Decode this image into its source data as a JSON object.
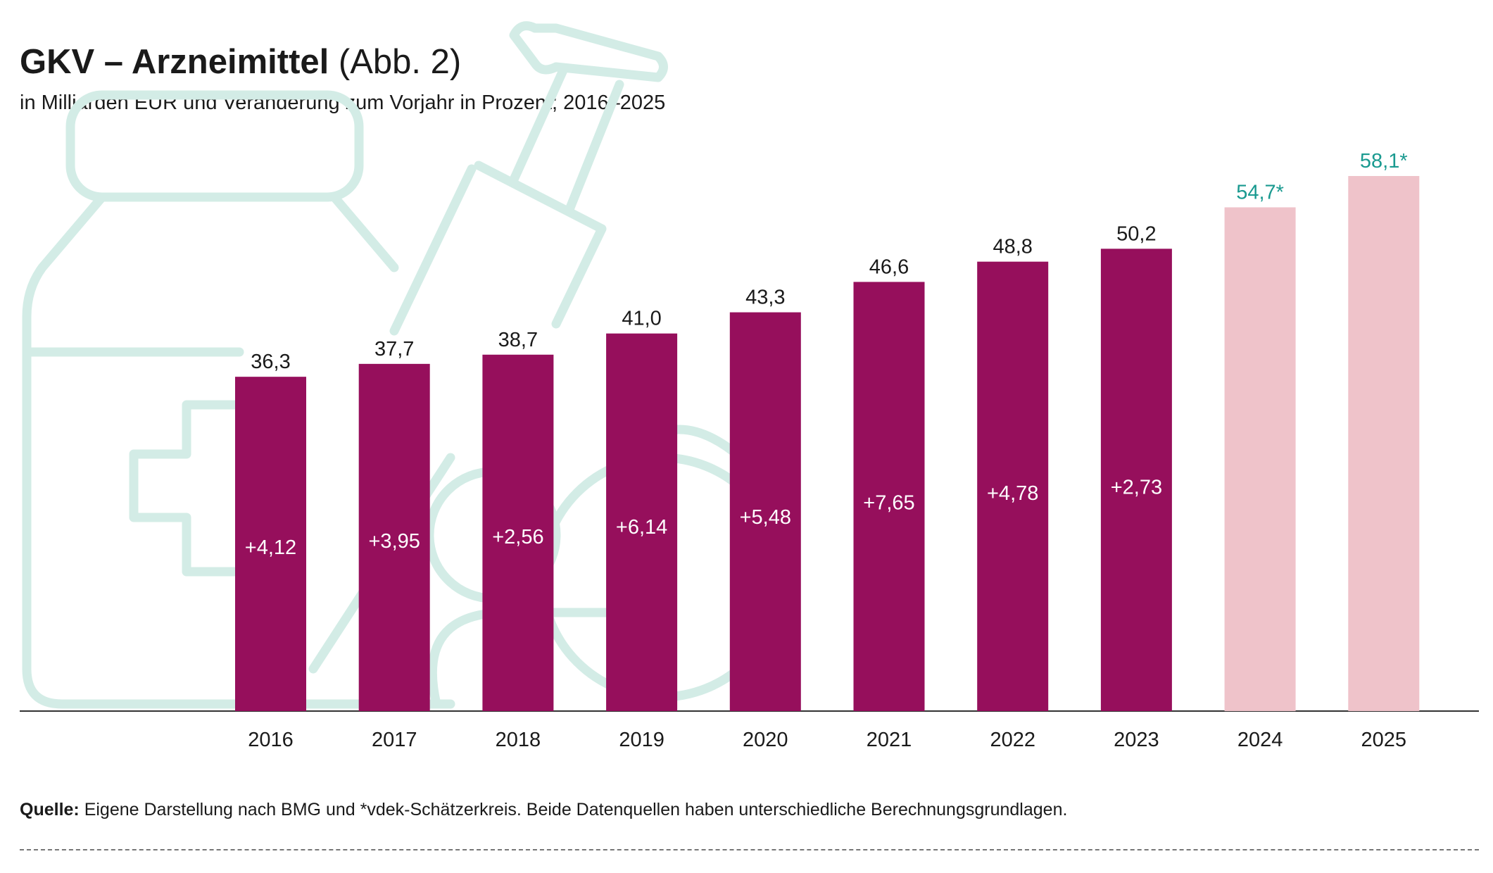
{
  "header": {
    "title_bold": "GKV – Arzneimittel",
    "title_rest": "(Abb. 2)",
    "subtitle": "in Milliarden EUR und Veränderung zum Vorjahr in Prozent; 2016–2025"
  },
  "footer": {
    "source_label": "Quelle:",
    "source_text": "Eigene Darstellung nach BMG und *vdek-Schätzerkreis. Beide Datenquellen haben unterschiedliche Berechnungsgrundlagen."
  },
  "colors": {
    "actual_bar": "#960f5c",
    "estimate_bar": "#efc3ca",
    "estimate_label": "#1a9a90",
    "value_label": "#1a1a1a",
    "inner_label": "#ffffff",
    "background_illustration": "#d3ece6",
    "axis": "#333333"
  },
  "chart_data": {
    "type": "bar",
    "categories": [
      "2016",
      "2017",
      "2018",
      "2019",
      "2020",
      "2021",
      "2022",
      "2023",
      "2024",
      "2025"
    ],
    "values": [
      36.3,
      37.7,
      38.7,
      41.0,
      43.3,
      46.6,
      48.8,
      50.2,
      54.7,
      58.1
    ],
    "value_labels": [
      "36,3",
      "37,7",
      "38,7",
      "41,0",
      "43,3",
      "46,6",
      "48,8",
      "50,2",
      "54,7*",
      "58,1*"
    ],
    "change_pct": [
      4.12,
      3.95,
      2.56,
      6.14,
      5.48,
      7.65,
      4.78,
      2.73,
      null,
      null
    ],
    "change_labels": [
      "+4,12",
      "+3,95",
      "+2,56",
      "+6,14",
      "+5,48",
      "+7,65",
      "+4,78",
      "+2,73",
      "",
      ""
    ],
    "estimated": [
      false,
      false,
      false,
      false,
      false,
      false,
      false,
      false,
      true,
      true
    ],
    "ylim": [
      0,
      58.1
    ],
    "grid": false,
    "legend": "none",
    "title": "GKV – Arzneimittel (Abb. 2)",
    "subtitle": "in Milliarden EUR und Veränderung zum Vorjahr in Prozent; 2016–2025",
    "xlabel": "",
    "ylabel": ""
  }
}
